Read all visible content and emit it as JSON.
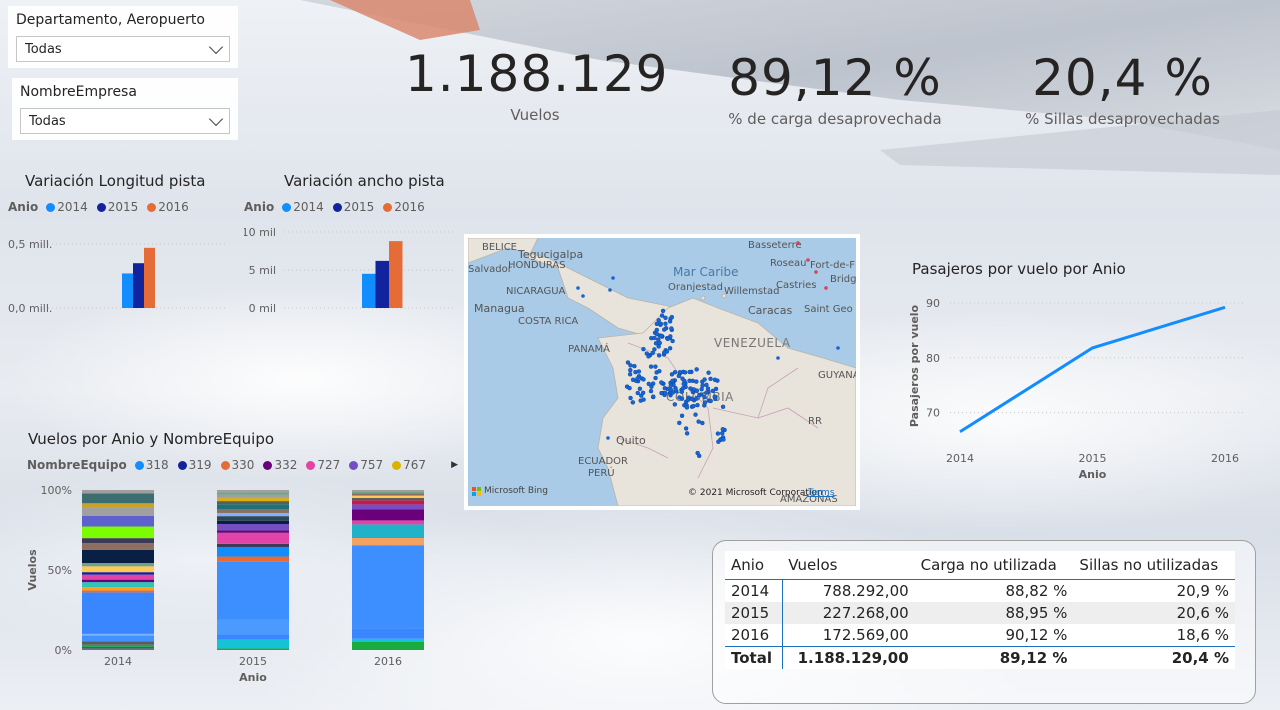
{
  "slicers": [
    {
      "title": "Departamento, Aeropuerto",
      "value": "Todas"
    },
    {
      "title": "NombreEmpresa",
      "value": "Todas"
    }
  ],
  "kpis": [
    {
      "value": "1.188.129",
      "label": "Vuelos"
    },
    {
      "value": "89,12 %",
      "label": "% de carga desaprovechada"
    },
    {
      "value": "20,4 %",
      "label": "% Sillas desaprovechadas"
    }
  ],
  "colors": {
    "y2014": "#118dff",
    "y2015": "#12239e",
    "y2016": "#e66c37",
    "line": "#118dff"
  },
  "chart_data": [
    {
      "type": "bar",
      "title": "Variación Longitud pista",
      "legend_title": "Anio",
      "series": [
        {
          "name": "2014",
          "values": [
            0.27
          ]
        },
        {
          "name": "2015",
          "values": [
            0.35
          ]
        },
        {
          "name": "2016",
          "values": [
            0.47
          ]
        }
      ],
      "y_ticks": [
        "0,5 mill.",
        "0,0 mill."
      ],
      "ylim": [
        0,
        0.5
      ],
      "unit_note": "millones"
    },
    {
      "type": "bar",
      "title": "Variación ancho pista",
      "legend_title": "Anio",
      "series": [
        {
          "name": "2014",
          "values": [
            4.5
          ]
        },
        {
          "name": "2015",
          "values": [
            6.2
          ]
        },
        {
          "name": "2016",
          "values": [
            8.8
          ]
        }
      ],
      "y_ticks": [
        "10 mil",
        "5 mil",
        "0 mil"
      ],
      "ylim": [
        0,
        10
      ]
    },
    {
      "type": "line",
      "title": "Pasajeros por vuelo por Anio",
      "x": [
        "2014",
        "2015",
        "2016"
      ],
      "values": [
        66.5,
        81.8,
        89.2
      ],
      "xlabel": "Anio",
      "ylabel": "Pasajeros por vuelo",
      "y_ticks": [
        "90",
        "80",
        "70"
      ],
      "ylim": [
        65,
        92
      ]
    },
    {
      "type": "bar",
      "title": "Vuelos por Anio y NombreEquipo",
      "legend_title": "NombreEquipo",
      "legend": [
        {
          "name": "318",
          "color": "#118dff"
        },
        {
          "name": "319",
          "color": "#12239e"
        },
        {
          "name": "330",
          "color": "#e66c37"
        },
        {
          "name": "332",
          "color": "#6b007b"
        },
        {
          "name": "727",
          "color": "#e044a7"
        },
        {
          "name": "757",
          "color": "#744ec2"
        },
        {
          "name": "767",
          "color": "#d9b300"
        }
      ],
      "categories": [
        "2014",
        "2015",
        "2016"
      ],
      "xlabel": "Anio",
      "ylabel": "Vuelos",
      "y_ticks": [
        "100%",
        "50%",
        "0%"
      ],
      "stacked_percent": true,
      "stacks": [
        [
          0.8,
          1.2,
          1.2,
          2.0,
          3.5,
          1.0,
          25.0,
          1.2,
          2.0,
          3.0,
          1.5,
          3.0,
          1.5,
          3.5,
          2.0,
          8.0,
          4.0,
          3.0,
          7.0,
          6.5,
          5.0,
          2.5,
          6.0,
          2.0
        ],
        [
          1.0,
          5.5,
          3.5,
          9.0,
          37.0,
          3.0,
          6.0,
          2.0,
          7.0,
          1.5,
          4.0,
          2.0,
          3.0,
          2.0,
          2.5,
          3.0,
          2.0,
          1.5,
          1.0,
          1.5,
          1.5,
          1.5
        ],
        [
          5.0,
          2.0,
          6.5,
          52.0,
          4.5,
          8.5,
          2.5,
          7.0,
          3.0,
          2.5,
          1.5,
          1.5,
          1.5,
          1.0,
          1.0
        ]
      ],
      "stack_colors": [
        [
          "#d64550",
          "#197278",
          "#1aab40",
          "#5c5c5c",
          "#4092ff",
          "#7fb3ff",
          "#3a86ff",
          "#e66c37",
          "#ff9f1c",
          "#2ec4b6",
          "#6b007b",
          "#e044a7",
          "#12239e",
          "#ffc857",
          "#70a288",
          "#0a1f44",
          "#8d6e63",
          "#3b3b58",
          "#7cfc00",
          "#5e60ce",
          "#a0a0a0",
          "#c9a227",
          "#3c6e71",
          "#9e9e9e"
        ],
        [
          "#1aab40",
          "#16c2d5",
          "#3a86ff",
          "#4b9bff",
          "#3d8eff",
          "#e66c37",
          "#118dff",
          "#3b3b58",
          "#e044a7",
          "#6b007b",
          "#744ec2",
          "#0a1f44",
          "#2f4858",
          "#7fb3ff",
          "#8d6e63",
          "#197278",
          "#5c5c5c",
          "#d9b300",
          "#c9a227",
          "#9e9e9e",
          "#70a288",
          "#a0a0a0"
        ],
        [
          "#1aab40",
          "#16c2d5",
          "#3a86ff",
          "#3d8eff",
          "#f4a261",
          "#1fb2c9",
          "#e044a7",
          "#6b007b",
          "#744ec2",
          "#c9184a",
          "#5c5c5c",
          "#ffc857",
          "#8d6e63",
          "#70a288",
          "#9e9e9e"
        ]
      ]
    }
  ],
  "map": {
    "sea_labels": [
      "Mar Caribe"
    ],
    "country_labels": [
      "VENEZUELA",
      "COLOMBIA",
      "ECUADOR",
      "PANAMÁ",
      "NICARAGUA",
      "HONDURAS",
      "COSTA RICA",
      "GUYANA",
      "BELICE",
      "PERÚ",
      "AMAZONAS",
      "RR"
    ],
    "city_labels": [
      "Tegucigalpa",
      "Managua",
      "Quito",
      "Caracas",
      "Willemstad",
      "Oranjestad",
      "Basseterre",
      "Roseau",
      "Fort-de-F",
      "Bridg",
      "Castries",
      "Saint Geo",
      "Salvador"
    ],
    "credit": "© 2021 Microsoft Corporation",
    "terms": "Terms",
    "logo": "Microsoft Bing"
  },
  "table": {
    "headers": [
      "Anio",
      "Vuelos",
      "Carga no utilizada",
      "Sillas no utilizadas"
    ],
    "rows": [
      [
        "2014",
        "788.292,00",
        "88,82 %",
        "20,9 %"
      ],
      [
        "2015",
        "227.268,00",
        "88,95 %",
        "20,6 %"
      ],
      [
        "2016",
        "172.569,00",
        "90,12 %",
        "18,6 %"
      ]
    ],
    "total": [
      "Total",
      "1.188.129,00",
      "89,12 %",
      "20,4 %"
    ]
  }
}
